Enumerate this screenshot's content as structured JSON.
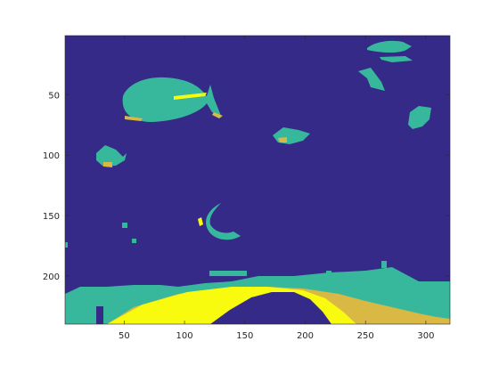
{
  "chart_data": {
    "type": "heatmap",
    "title": "",
    "xlabel": "",
    "ylabel": "",
    "xlim": [
      1,
      320
    ],
    "ylim": [
      1,
      240
    ],
    "y_axis_reversed": true,
    "x_ticks": [
      50,
      100,
      150,
      200,
      250,
      300
    ],
    "y_ticks": [
      50,
      100,
      150,
      200
    ],
    "x_tick_labels": [
      "50",
      "100",
      "150",
      "200",
      "250",
      "300"
    ],
    "y_tick_labels": [
      "50",
      "100",
      "150",
      "200"
    ],
    "colormap": "parula",
    "colors": {
      "background": "#352a87",
      "teal": "#37b89d",
      "tan": "#d9b844",
      "yellow": "#f9fb0e",
      "axis": "#262626"
    },
    "regions": [
      {
        "label": "large fish",
        "class": "teal",
        "center": [
          140,
          58
        ],
        "extent": [
          92,
          86
        ]
      },
      {
        "label": "small fish top-right",
        "class": "teal",
        "center": [
          258,
          14
        ],
        "extent": [
          39,
          20
        ]
      },
      {
        "label": "fish right",
        "class": "teal",
        "center": [
          288,
          66
        ],
        "extent": [
          12,
          14
        ]
      },
      {
        "label": "fish middle",
        "class": "teal",
        "center": [
          183,
          84
        ],
        "extent": [
          28,
          20
        ]
      },
      {
        "label": "fish left",
        "class": "teal",
        "center": [
          38,
          102
        ],
        "extent": [
          18,
          20
        ]
      },
      {
        "label": "crescent",
        "class": "teal",
        "center": [
          121,
          155
        ],
        "extent": [
          34,
          38
        ]
      },
      {
        "label": "reef band",
        "class": "teal",
        "center": [
          160,
          224
        ],
        "extent": [
          320,
          34
        ]
      },
      {
        "label": "sandy patch",
        "class": "tan",
        "center": [
          270,
          228
        ],
        "extent": [
          100,
          25
        ]
      },
      {
        "label": "bright arch",
        "class": "yellow",
        "center": [
          160,
          226
        ],
        "extent": [
          180,
          30
        ]
      }
    ]
  }
}
